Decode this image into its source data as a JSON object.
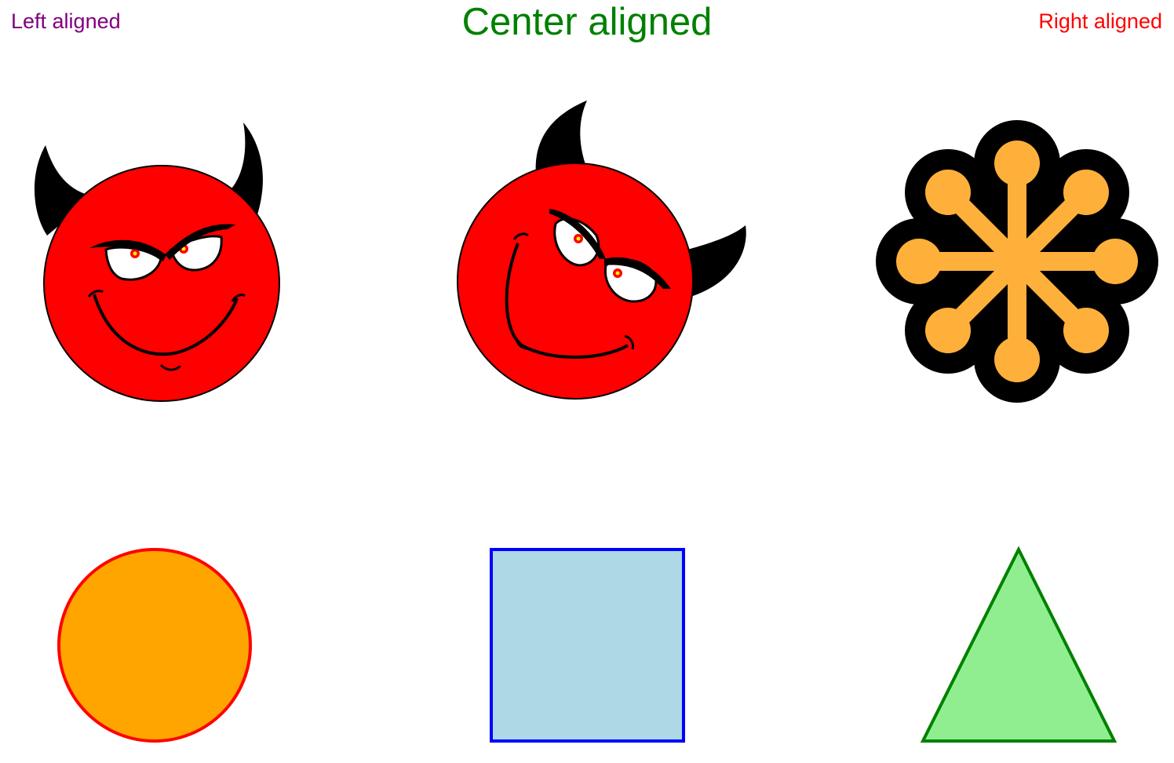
{
  "labels": {
    "left": "Left aligned",
    "center": "Center aligned",
    "right": "Right aligned"
  },
  "colors": {
    "left_label": "#800080",
    "center_label": "#008000",
    "right_label": "#ff0000",
    "devil_face": "#ff0000",
    "devil_horns": "#000000",
    "flower_fill": "#ffb03b",
    "flower_outline": "#000000",
    "circle_fill": "#ffa500",
    "circle_stroke": "#ff0000",
    "square_fill": "#add8e6",
    "square_stroke": "#0000ff",
    "triangle_fill": "#90ee90",
    "triangle_stroke": "#008000"
  },
  "icons": [
    "devil-face-icon",
    "devil-face-tilted-icon",
    "flower-asterisk-icon",
    "circle-shape",
    "square-shape",
    "triangle-shape"
  ]
}
